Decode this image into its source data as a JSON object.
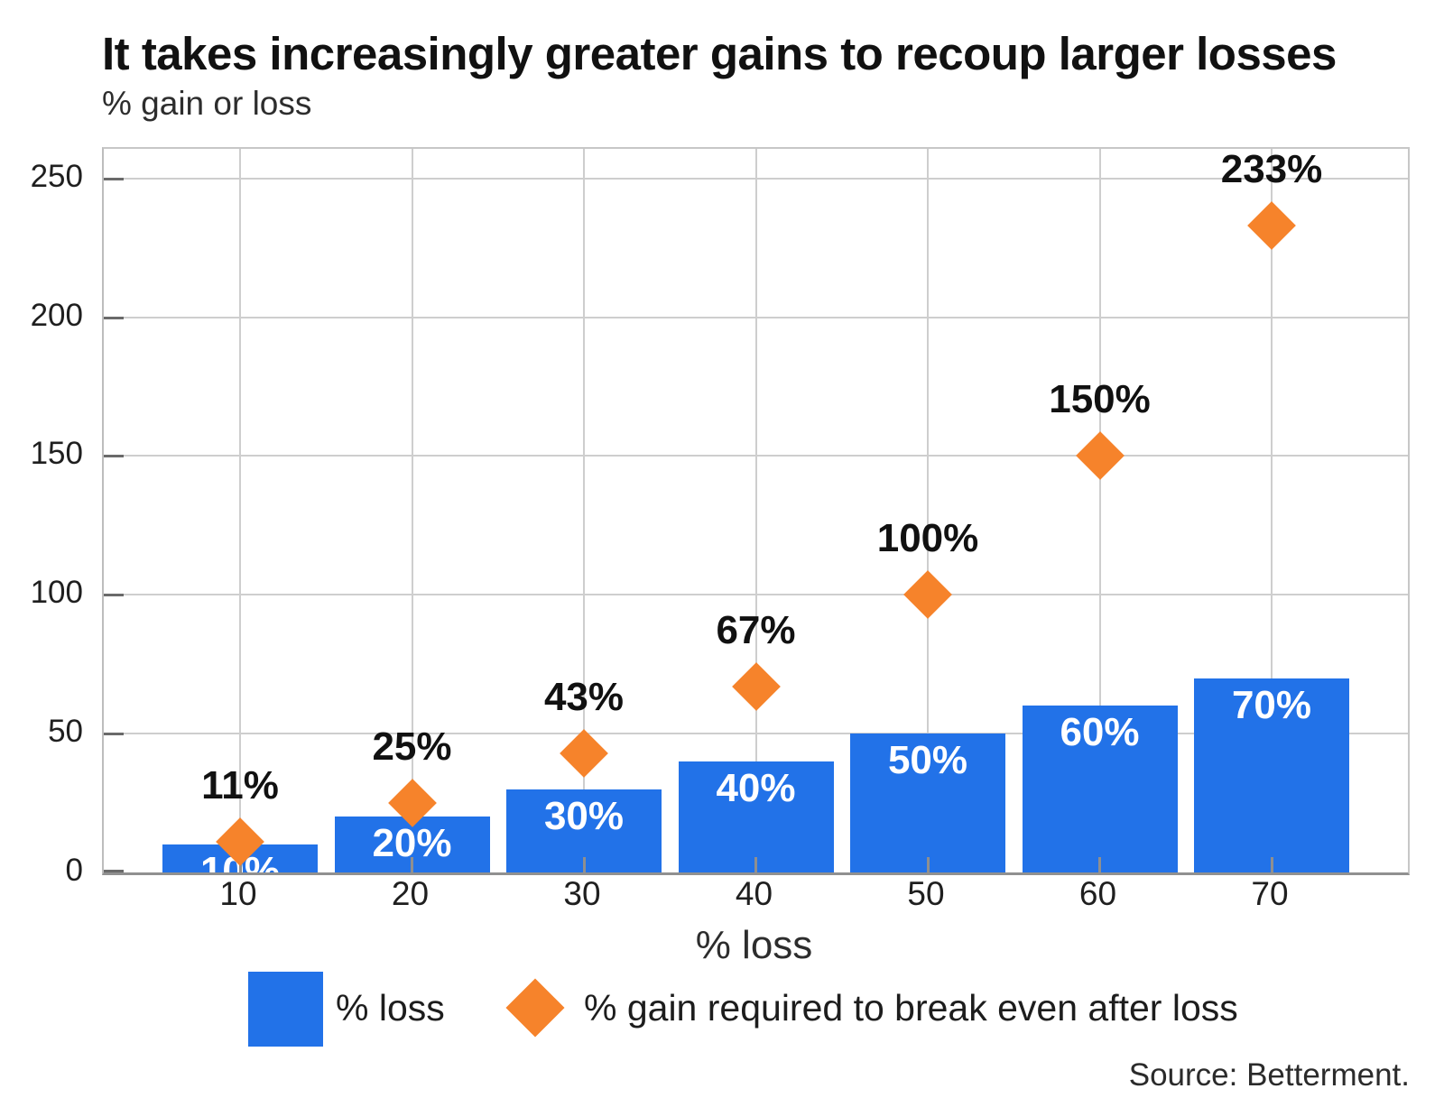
{
  "title": "It takes increasingly greater gains to recoup larger losses",
  "subtitle": "% gain or loss",
  "x_axis_title": "% loss",
  "source": "Source: Betterment.",
  "legend": {
    "bar_label": "% loss",
    "diamond_label": "% gain required to break even after loss"
  },
  "colors": {
    "bar": "#2272e8",
    "diamond": "#f6832b",
    "grid": "#cecece",
    "axis": "#909090",
    "tick": "#6a6a6a",
    "title_text": "#111111",
    "text": "#1f1f1f"
  },
  "chart_data": {
    "type": "bar",
    "subtype": "bar + diamond scatter overlay",
    "title": "It takes increasingly greater gains to recoup larger losses",
    "xlabel": "% loss",
    "ylabel": "% gain or loss",
    "categories": [
      10,
      20,
      30,
      40,
      50,
      60,
      70
    ],
    "series": [
      {
        "name": "% loss",
        "type": "bar",
        "color": "#2272e8",
        "values": [
          10,
          20,
          30,
          40,
          50,
          60,
          70
        ],
        "labels": [
          "10%",
          "20%",
          "30%",
          "40%",
          "50%",
          "60%",
          "70%"
        ]
      },
      {
        "name": "% gain required to break even after loss",
        "type": "scatter",
        "marker": "diamond",
        "color": "#f6832b",
        "values": [
          11,
          25,
          43,
          67,
          100,
          150,
          233
        ],
        "labels": [
          "11%",
          "25%",
          "43%",
          "67%",
          "100%",
          "150%",
          "233%"
        ]
      }
    ],
    "ylim": [
      0,
      260
    ],
    "yticks": [
      0,
      50,
      100,
      150,
      200,
      250
    ],
    "grid": true,
    "legend_position": "bottom"
  }
}
